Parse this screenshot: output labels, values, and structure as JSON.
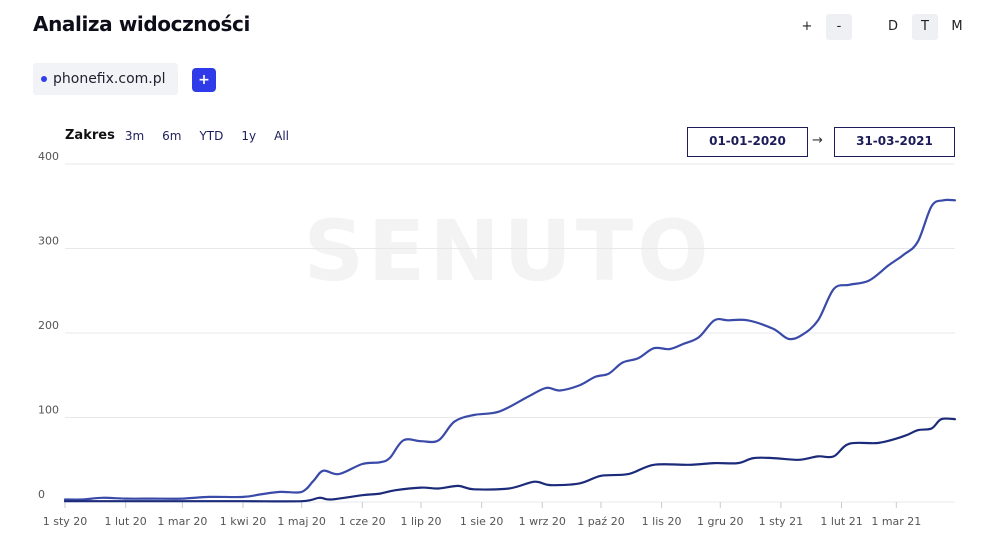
{
  "header": {
    "title": "Analiza widoczności"
  },
  "controls": {
    "zoom_in": "+",
    "zoom_out": "-",
    "periods": [
      "D",
      "T",
      "M"
    ]
  },
  "domain": {
    "name": "phonefix.com.pl",
    "add_label": "+",
    "dot_color": "#2f3eea"
  },
  "range": {
    "label": "Zakres",
    "options": [
      "3m",
      "6m",
      "YTD",
      "1y",
      "All"
    ],
    "date_from": "01-01-2020",
    "arrow": "→",
    "date_to": "31-03-2021"
  },
  "watermark": "SENUTO",
  "chart_data": {
    "type": "line",
    "x_ticks": [
      "1 sty 20",
      "1 lut 20",
      "1 mar 20",
      "1 kwi 20",
      "1 maj 20",
      "1 cze 20",
      "1 lip 20",
      "1 sie 20",
      "1 wrz 20",
      "1 paź 20",
      "1 lis 20",
      "1 gru 20",
      "1 sty 21",
      "1 lut 21",
      "1 mar 21"
    ],
    "y_ticks": [
      0,
      100,
      200,
      300,
      400
    ],
    "ylim": [
      0,
      400
    ],
    "xlim": [
      "2020-01-01",
      "2021-03-31"
    ],
    "grid": true,
    "series": [
      {
        "color": "#3a4aa8",
        "points": [
          [
            "2020-01-01",
            3
          ],
          [
            "2020-01-10",
            3
          ],
          [
            "2020-01-20",
            5
          ],
          [
            "2020-02-01",
            4
          ],
          [
            "2020-02-15",
            4
          ],
          [
            "2020-03-01",
            4
          ],
          [
            "2020-03-15",
            6
          ],
          [
            "2020-04-01",
            6
          ],
          [
            "2020-04-10",
            9
          ],
          [
            "2020-04-20",
            12
          ],
          [
            "2020-05-01",
            12
          ],
          [
            "2020-05-07",
            25
          ],
          [
            "2020-05-12",
            37
          ],
          [
            "2020-05-20",
            33
          ],
          [
            "2020-06-01",
            45
          ],
          [
            "2020-06-10",
            47
          ],
          [
            "2020-06-15",
            52
          ],
          [
            "2020-06-22",
            73
          ],
          [
            "2020-07-01",
            72
          ],
          [
            "2020-07-10",
            73
          ],
          [
            "2020-07-18",
            95
          ],
          [
            "2020-07-28",
            103
          ],
          [
            "2020-08-10",
            107
          ],
          [
            "2020-08-25",
            125
          ],
          [
            "2020-09-03",
            135
          ],
          [
            "2020-09-10",
            132
          ],
          [
            "2020-09-20",
            138
          ],
          [
            "2020-09-28",
            148
          ],
          [
            "2020-10-05",
            152
          ],
          [
            "2020-10-12",
            165
          ],
          [
            "2020-10-20",
            170
          ],
          [
            "2020-10-28",
            182
          ],
          [
            "2020-11-05",
            181
          ],
          [
            "2020-11-12",
            187
          ],
          [
            "2020-11-20",
            195
          ],
          [
            "2020-11-28",
            215
          ],
          [
            "2020-12-05",
            215
          ],
          [
            "2020-12-15",
            215
          ],
          [
            "2020-12-28",
            205
          ],
          [
            "2021-01-05",
            193
          ],
          [
            "2021-01-12",
            198
          ],
          [
            "2021-01-20",
            215
          ],
          [
            "2021-01-28",
            252
          ],
          [
            "2021-02-05",
            257
          ],
          [
            "2021-02-15",
            262
          ],
          [
            "2021-02-25",
            280
          ],
          [
            "2021-03-05",
            293
          ],
          [
            "2021-03-12",
            308
          ],
          [
            "2021-03-19",
            350
          ],
          [
            "2021-03-25",
            357
          ],
          [
            "2021-03-31",
            357
          ]
        ]
      },
      {
        "color": "#1c2a7a",
        "points": [
          [
            "2020-01-01",
            1
          ],
          [
            "2020-02-01",
            1
          ],
          [
            "2020-03-01",
            1
          ],
          [
            "2020-04-01",
            1
          ],
          [
            "2020-05-01",
            1
          ],
          [
            "2020-05-10",
            5
          ],
          [
            "2020-05-16",
            3
          ],
          [
            "2020-06-01",
            8
          ],
          [
            "2020-06-10",
            10
          ],
          [
            "2020-06-18",
            14
          ],
          [
            "2020-07-01",
            17
          ],
          [
            "2020-07-10",
            16
          ],
          [
            "2020-07-20",
            19
          ],
          [
            "2020-07-28",
            15
          ],
          [
            "2020-08-15",
            16
          ],
          [
            "2020-08-28",
            24
          ],
          [
            "2020-09-05",
            20
          ],
          [
            "2020-09-20",
            22
          ],
          [
            "2020-10-01",
            31
          ],
          [
            "2020-10-15",
            33
          ],
          [
            "2020-10-28",
            44
          ],
          [
            "2020-11-15",
            44
          ],
          [
            "2020-11-28",
            46
          ],
          [
            "2020-12-10",
            46
          ],
          [
            "2020-12-18",
            52
          ],
          [
            "2020-12-28",
            52
          ],
          [
            "2021-01-10",
            50
          ],
          [
            "2021-01-20",
            54
          ],
          [
            "2021-01-28",
            54
          ],
          [
            "2021-02-05",
            69
          ],
          [
            "2021-02-20",
            70
          ],
          [
            "2021-03-05",
            78
          ],
          [
            "2021-03-12",
            85
          ],
          [
            "2021-03-19",
            87
          ],
          [
            "2021-03-24",
            98
          ],
          [
            "2021-03-31",
            98
          ]
        ]
      }
    ]
  }
}
